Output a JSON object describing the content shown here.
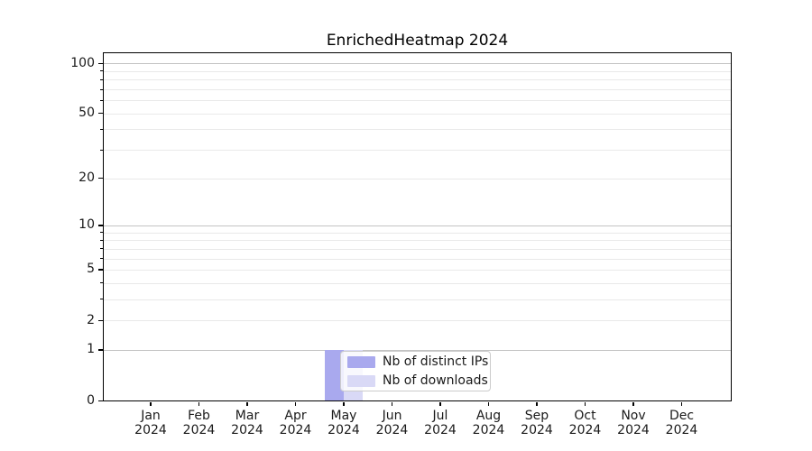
{
  "chart_data": {
    "type": "bar",
    "title": "EnrichedHeatmap 2024",
    "categories": [
      {
        "month": "Jan",
        "year": "2024"
      },
      {
        "month": "Feb",
        "year": "2024"
      },
      {
        "month": "Mar",
        "year": "2024"
      },
      {
        "month": "Apr",
        "year": "2024"
      },
      {
        "month": "May",
        "year": "2024"
      },
      {
        "month": "Jun",
        "year": "2024"
      },
      {
        "month": "Jul",
        "year": "2024"
      },
      {
        "month": "Aug",
        "year": "2024"
      },
      {
        "month": "Sep",
        "year": "2024"
      },
      {
        "month": "Oct",
        "year": "2024"
      },
      {
        "month": "Nov",
        "year": "2024"
      },
      {
        "month": "Dec",
        "year": "2024"
      }
    ],
    "series": [
      {
        "name": "Nb of distinct IPs",
        "color": "#a9a9ee",
        "values": [
          0,
          0,
          0,
          0,
          1,
          0,
          0,
          0,
          0,
          0,
          0,
          0
        ]
      },
      {
        "name": "Nb of downloads",
        "color": "#d9d9f6",
        "values": [
          0,
          0,
          0,
          0,
          1,
          0,
          0,
          0,
          0,
          0,
          0,
          0
        ]
      }
    ],
    "yscale": "log1p",
    "ylim": [
      0,
      115.4
    ],
    "yticks": [
      0,
      1,
      2,
      5,
      10,
      20,
      50,
      100
    ],
    "gridlines": {
      "major": [
        1,
        10,
        100
      ],
      "minor": [
        2,
        3,
        4,
        5,
        6,
        7,
        8,
        9,
        20,
        30,
        40,
        50,
        60,
        70,
        80,
        90
      ]
    },
    "legend": {
      "visible": true,
      "location": "over-may-bars"
    }
  },
  "colors": {
    "background": "#ffffff",
    "axis": "#000000",
    "text": "#1a1a1a",
    "major_gridline": "#c3c3c3",
    "minor_gridline": "#e9e9e9",
    "legend_border": "#cccccc",
    "bar_distinct_ips": "#a9a9ee",
    "bar_downloads": "#d9d9f6"
  }
}
